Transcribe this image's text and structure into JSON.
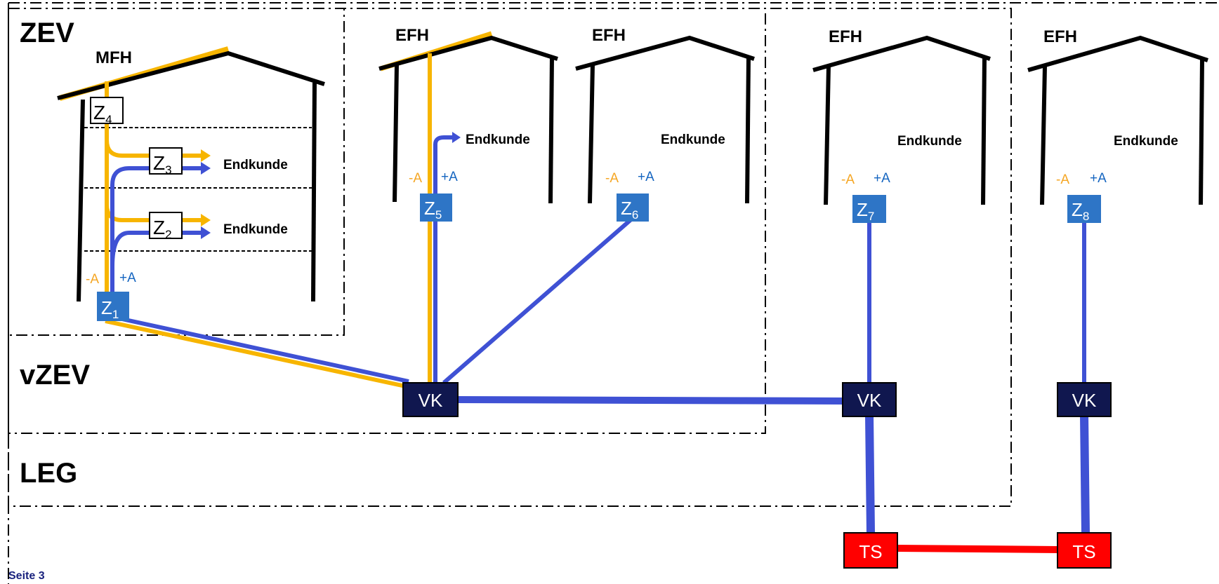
{
  "zones": {
    "zev": "ZEV",
    "vzev": "vZEV",
    "leg": "LEG"
  },
  "houses": {
    "mfh": "MFH",
    "efh1": "EFH",
    "efh2": "EFH",
    "efh3": "EFH",
    "efh4": "EFH"
  },
  "customer_label": "Endkunde",
  "direction": {
    "minus": "-A",
    "plus": "+A"
  },
  "meters": {
    "z1": {
      "base": "Z",
      "sub": "1"
    },
    "z2": {
      "base": "Z",
      "sub": "2"
    },
    "z3": {
      "base": "Z",
      "sub": "3"
    },
    "z4": {
      "base": "Z",
      "sub": "4"
    },
    "z5": {
      "base": "Z",
      "sub": "5"
    },
    "z6": {
      "base": "Z",
      "sub": "6"
    },
    "z7": {
      "base": "Z",
      "sub": "7"
    },
    "z8": {
      "base": "Z",
      "sub": "8"
    }
  },
  "boxes": {
    "vk1": "VK",
    "vk2": "VK",
    "vk3": "VK",
    "ts1": "TS",
    "ts2": "TS"
  },
  "footer": "Seite 3",
  "colors": {
    "solar": "#f7b500",
    "grid_line": "#3f51d4",
    "meter_blue": "#2e75c6",
    "vk": "#10174f",
    "ts": "#ff0000",
    "ts_line": "#ff0000"
  }
}
